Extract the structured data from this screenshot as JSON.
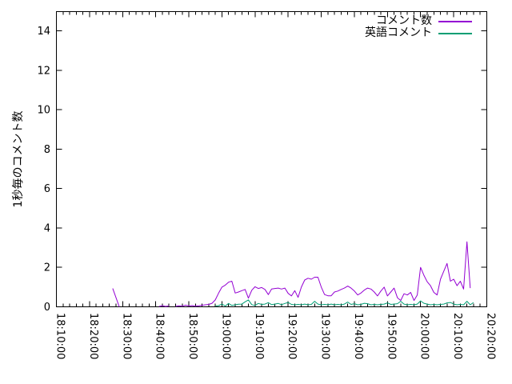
{
  "chart_data": {
    "type": "line",
    "title": "",
    "xlabel": "",
    "ylabel": "1秒毎のコメント数",
    "xlim": [
      "18:10:00",
      "20:20:00"
    ],
    "ylim": [
      0,
      14
    ],
    "y_tick_step": 2,
    "x_major_tick_minutes": 10,
    "x_minor_tick_minutes": 2,
    "grid": false,
    "legend_position": "top-right-inside",
    "x_tick_labels": [
      "18:10:00",
      "18:20:00",
      "18:30:00",
      "18:40:00",
      "18:50:00",
      "19:00:00",
      "19:10:00",
      "19:20:00",
      "19:30:00",
      "19:40:00",
      "19:50:00",
      "20:00:00",
      "20:10:00",
      "20:20:00"
    ],
    "y_tick_labels": [
      "0",
      "2",
      "4",
      "6",
      "8",
      "10",
      "12",
      "14"
    ],
    "series": [
      {
        "name": "コメント数",
        "color": "#9400d3",
        "points": [
          [
            "18:27",
            0.93
          ],
          [
            "18:29",
            0
          ],
          null,
          [
            "18:41",
            0.02
          ],
          [
            "18:42",
            0.05
          ],
          [
            "18:43",
            0.02
          ],
          [
            "18:44",
            0.04
          ],
          null,
          [
            "18:46",
            0.02
          ],
          [
            "18:47",
            0.05
          ],
          [
            "18:48",
            0.03
          ],
          [
            "18:49",
            0.08
          ],
          [
            "18:50",
            0.04
          ],
          [
            "18:51",
            0.06
          ],
          [
            "18:52",
            0.03
          ],
          [
            "18:53",
            0.05
          ],
          [
            "18:54",
            0.08
          ],
          [
            "18:55",
            0.1
          ],
          [
            "18:56",
            0.12
          ],
          [
            "18:57",
            0.18
          ],
          [
            "18:58",
            0.35
          ],
          [
            "18:59",
            0.7
          ],
          [
            "19:00",
            1.0
          ],
          [
            "19:01",
            1.1
          ],
          [
            "19:02",
            1.25
          ],
          [
            "19:03",
            1.3
          ],
          [
            "19:04",
            0.7
          ],
          [
            "19:05",
            0.75
          ],
          [
            "19:06",
            0.82
          ],
          [
            "19:07",
            0.88
          ],
          [
            "19:08",
            0.44
          ],
          [
            "19:09",
            0.84
          ],
          [
            "19:10",
            1.02
          ],
          [
            "19:11",
            0.93
          ],
          [
            "19:12",
            0.98
          ],
          [
            "19:13",
            0.88
          ],
          [
            "19:14",
            0.62
          ],
          [
            "19:15",
            0.9
          ],
          [
            "19:16",
            0.93
          ],
          [
            "19:17",
            0.95
          ],
          [
            "19:18",
            0.9
          ],
          [
            "19:19",
            0.95
          ],
          [
            "19:20",
            0.68
          ],
          [
            "19:21",
            0.55
          ],
          [
            "19:22",
            0.82
          ],
          [
            "19:23",
            0.48
          ],
          [
            "19:24",
            1.0
          ],
          [
            "19:25",
            1.36
          ],
          [
            "19:26",
            1.45
          ],
          [
            "19:27",
            1.4
          ],
          [
            "19:28",
            1.5
          ],
          [
            "19:29",
            1.5
          ],
          [
            "19:30",
            1.0
          ],
          [
            "19:31",
            0.62
          ],
          [
            "19:32",
            0.56
          ],
          [
            "19:33",
            0.56
          ],
          [
            "19:34",
            0.75
          ],
          [
            "19:35",
            0.8
          ],
          [
            "19:36",
            0.88
          ],
          [
            "19:37",
            0.95
          ],
          [
            "19:38",
            1.05
          ],
          [
            "19:39",
            0.95
          ],
          [
            "19:40",
            0.8
          ],
          [
            "19:41",
            0.6
          ],
          [
            "19:42",
            0.7
          ],
          [
            "19:43",
            0.85
          ],
          [
            "19:44",
            0.95
          ],
          [
            "19:45",
            0.9
          ],
          [
            "19:46",
            0.75
          ],
          [
            "19:47",
            0.55
          ],
          [
            "19:48",
            0.8
          ],
          [
            "19:49",
            1.0
          ],
          [
            "19:50",
            0.55
          ],
          [
            "19:51",
            0.75
          ],
          [
            "19:52",
            0.95
          ],
          [
            "19:53",
            0.46
          ],
          [
            "19:54",
            0.32
          ],
          [
            "19:55",
            0.66
          ],
          [
            "19:56",
            0.6
          ],
          [
            "19:57",
            0.73
          ],
          [
            "19:58",
            0.32
          ],
          [
            "19:59",
            0.6
          ],
          [
            "20:00",
            2.0
          ],
          [
            "20:01",
            1.6
          ],
          [
            "20:02",
            1.27
          ],
          [
            "20:03",
            1.07
          ],
          [
            "20:04",
            0.73
          ],
          [
            "20:05",
            0.6
          ],
          [
            "20:06",
            1.4
          ],
          [
            "20:07",
            1.8
          ],
          [
            "20:08",
            2.2
          ],
          [
            "20:09",
            1.3
          ],
          [
            "20:10",
            1.4
          ],
          [
            "20:11",
            1.07
          ],
          [
            "20:12",
            1.3
          ],
          [
            "20:13",
            0.9
          ],
          [
            "20:14",
            3.3
          ],
          [
            "20:15",
            0.95
          ]
        ]
      },
      {
        "name": "英語コメント",
        "color": "#009e73",
        "points": [
          [
            "18:58",
            0.03
          ],
          [
            "18:59",
            0.06
          ],
          [
            "19:00",
            0.14
          ],
          [
            "19:01",
            0.04
          ],
          [
            "19:02",
            0.17
          ],
          [
            "19:03",
            0.07
          ],
          [
            "19:04",
            0.1
          ],
          [
            "19:05",
            0.13
          ],
          [
            "19:06",
            0.14
          ],
          [
            "19:07",
            0.25
          ],
          [
            "19:08",
            0.35
          ],
          [
            "19:09",
            0.11
          ],
          [
            "19:10",
            0.07
          ],
          [
            "19:11",
            0.17
          ],
          [
            "19:12",
            0.12
          ],
          [
            "19:13",
            0.14
          ],
          [
            "19:14",
            0.21
          ],
          [
            "19:15",
            0.11
          ],
          [
            "19:16",
            0.14
          ],
          [
            "19:17",
            0.17
          ],
          [
            "19:18",
            0.11
          ],
          [
            "19:19",
            0.17
          ],
          [
            "19:20",
            0.22
          ],
          [
            "19:21",
            0.12
          ],
          [
            "19:22",
            0.1
          ],
          [
            "19:23",
            0.12
          ],
          [
            "19:24",
            0.1
          ],
          [
            "19:25",
            0.14
          ],
          [
            "19:26",
            0.1
          ],
          [
            "19:27",
            0.12
          ],
          [
            "19:28",
            0.28
          ],
          [
            "19:29",
            0.14
          ],
          [
            "19:30",
            0.1
          ],
          [
            "19:31",
            0.12
          ],
          [
            "19:32",
            0.1
          ],
          [
            "19:33",
            0.14
          ],
          [
            "19:34",
            0.1
          ],
          [
            "19:35",
            0.12
          ],
          [
            "19:36",
            0.1
          ],
          [
            "19:37",
            0.14
          ],
          [
            "19:38",
            0.24
          ],
          [
            "19:39",
            0.12
          ],
          [
            "19:40",
            0.16
          ],
          [
            "19:41",
            0.1
          ],
          [
            "19:42",
            0.12
          ],
          [
            "19:43",
            0.18
          ],
          [
            "19:44",
            0.16
          ],
          [
            "19:45",
            0.1
          ],
          [
            "19:46",
            0.12
          ],
          [
            "19:47",
            0.1
          ],
          [
            "19:48",
            0.12
          ],
          [
            "19:49",
            0.14
          ],
          [
            "19:50",
            0.2
          ],
          [
            "19:51",
            0.12
          ],
          [
            "19:52",
            0.14
          ],
          [
            "19:53",
            0.16
          ],
          [
            "19:54",
            0.28
          ],
          [
            "19:55",
            0.14
          ],
          [
            "19:56",
            0.1
          ],
          [
            "19:57",
            0.12
          ],
          [
            "19:58",
            0.1
          ],
          [
            "19:59",
            0.14
          ],
          [
            "20:00",
            0.3
          ],
          [
            "20:01",
            0.18
          ],
          [
            "20:02",
            0.14
          ],
          [
            "20:03",
            0.1
          ],
          [
            "20:04",
            0.12
          ],
          [
            "20:05",
            0.1
          ],
          [
            "20:06",
            0.12
          ],
          [
            "20:07",
            0.14
          ],
          [
            "20:08",
            0.2
          ],
          [
            "20:09",
            0.22
          ],
          [
            "20:10",
            0.14
          ],
          [
            "20:11",
            0.1
          ],
          [
            "20:12",
            0.12
          ],
          [
            "20:13",
            0.1
          ],
          [
            "20:14",
            0.28
          ],
          [
            "20:15",
            0.1
          ],
          [
            "20:16",
            0.22
          ]
        ]
      }
    ]
  }
}
